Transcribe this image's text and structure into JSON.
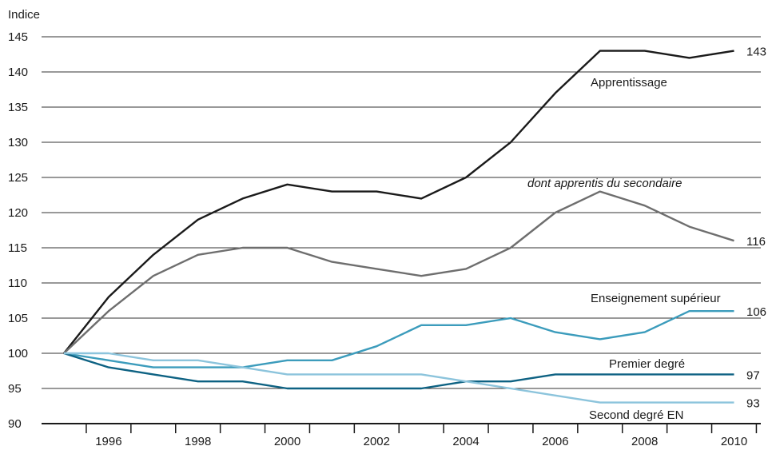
{
  "chart_data": {
    "type": "line",
    "ylabel": "Indice",
    "ylim": [
      90,
      145
    ],
    "y_ticks": [
      "90",
      "95",
      "100",
      "105",
      "110",
      "115",
      "120",
      "125",
      "130",
      "135",
      "140",
      "145"
    ],
    "x": [
      1995,
      1996,
      1997,
      1998,
      1999,
      2000,
      2001,
      2002,
      2003,
      2004,
      2005,
      2006,
      2007,
      2008,
      2009,
      2010
    ],
    "x_tick_labels": [
      "1996",
      "1998",
      "2000",
      "2002",
      "2004",
      "2006",
      "2008",
      "2010"
    ],
    "grid": "horizontal",
    "series": [
      {
        "name": "Apprentissage",
        "color": "#1a1a1a",
        "end_label": "143",
        "italic": false,
        "values": [
          100,
          108,
          114,
          119,
          122,
          124,
          123,
          123,
          122,
          125,
          130,
          137,
          143,
          143,
          142,
          143
        ]
      },
      {
        "name": "dont apprentis du secondaire",
        "color": "#6e6e6e",
        "end_label": "116",
        "italic": true,
        "values": [
          100,
          106,
          111,
          114,
          115,
          115,
          113,
          112,
          111,
          112,
          115,
          120,
          123,
          121,
          118,
          116
        ]
      },
      {
        "name": "Enseignement supérieur",
        "color": "#3c9cbc",
        "end_label": "106",
        "italic": false,
        "values": [
          100,
          99,
          98,
          98,
          98,
          99,
          99,
          101,
          104,
          104,
          105,
          103,
          102,
          103,
          106,
          106
        ]
      },
      {
        "name": "Premier degré",
        "color": "#0e6283",
        "end_label": "97",
        "italic": false,
        "values": [
          100,
          98,
          97,
          96,
          96,
          95,
          95,
          95,
          95,
          96,
          96,
          97,
          97,
          97,
          97,
          97
        ]
      },
      {
        "name": "Second degré EN",
        "color": "#8cc4dc",
        "end_label": "93",
        "italic": false,
        "values": [
          100,
          100,
          99,
          99,
          98,
          97,
          97,
          97,
          97,
          96,
          95,
          94,
          93,
          93,
          93,
          93
        ]
      }
    ]
  }
}
